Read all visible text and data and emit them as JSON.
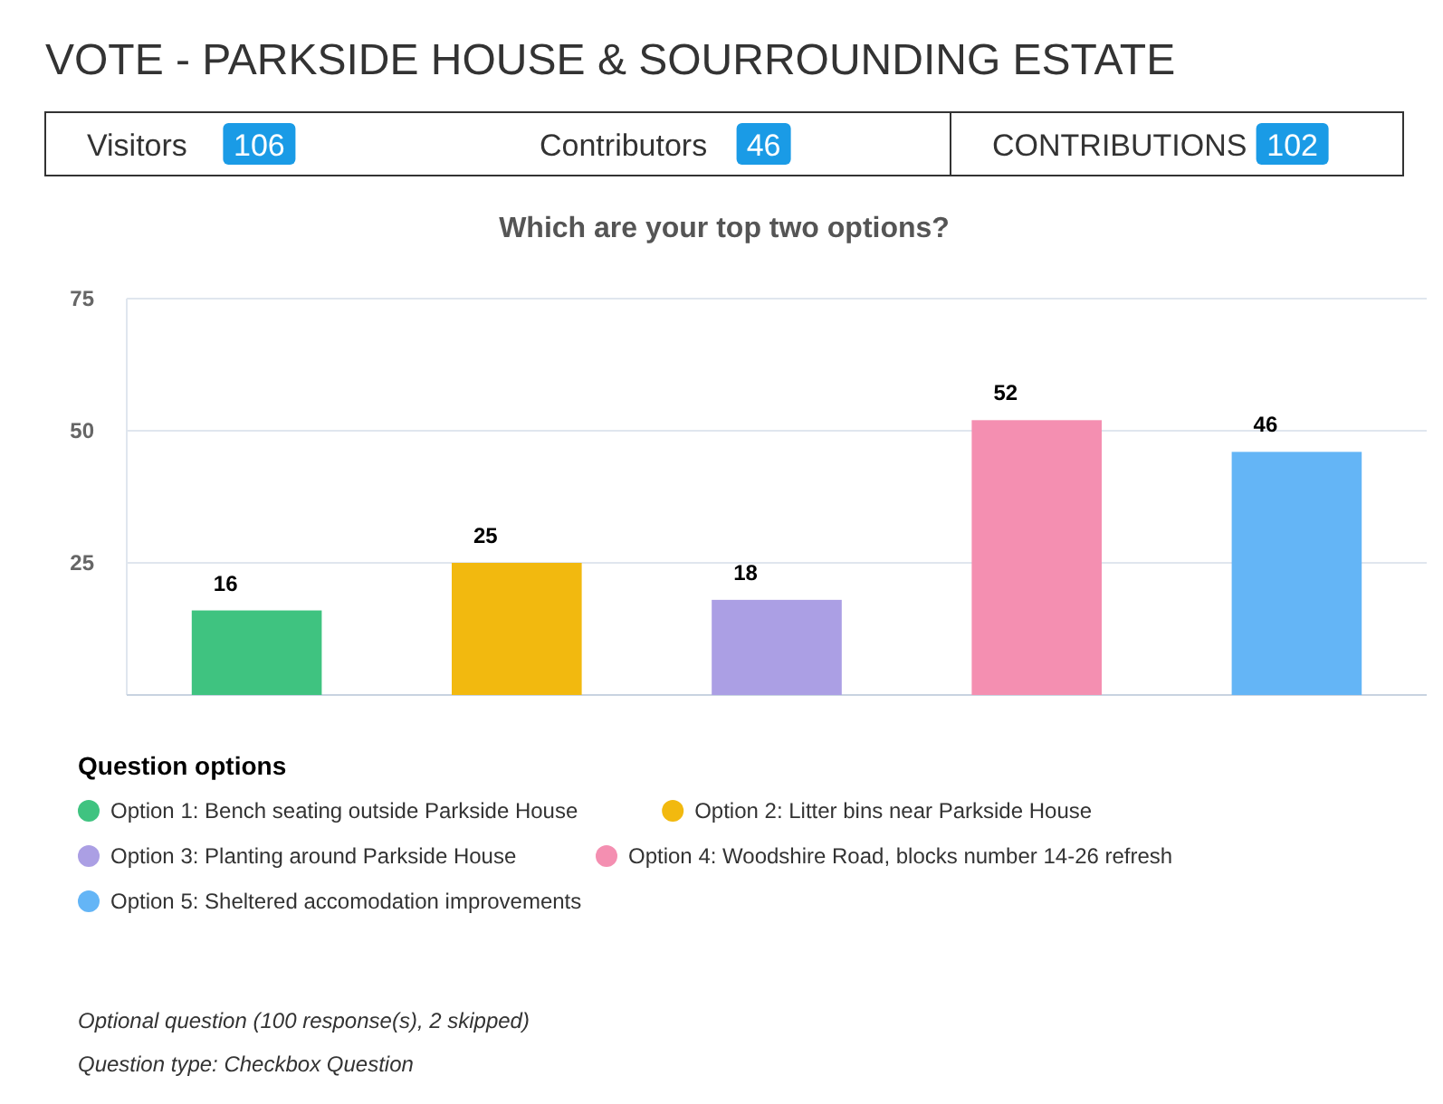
{
  "chart_data": {
    "type": "bar",
    "title": "VOTE - PARKSIDE HOUSE & SOURROUNDING ESTATE",
    "subtitle": "Which are your top two options?",
    "legend_title": "Question options",
    "categories": [
      null,
      null,
      null,
      null,
      null
    ],
    "series": [
      {
        "name": "Option 1: Bench seating outside Parkside House",
        "color": "#3fc380",
        "values": [
          16,
          null,
          null,
          null,
          null
        ]
      },
      {
        "name": "Option 2: Litter bins near Parkside House",
        "color": "#f2b90f",
        "values": [
          null,
          25,
          null,
          null,
          null
        ]
      },
      {
        "name": "Option 3: Planting around Parkside House",
        "color": "#ab9fe4",
        "values": [
          null,
          null,
          18,
          null,
          null
        ]
      },
      {
        "name": "Option 4: Woodshire Road, blocks number 14-26 refresh",
        "color": "#f48fb1",
        "values": [
          null,
          null,
          null,
          52,
          null
        ]
      },
      {
        "name": "Option 5: Sheltered accomodation improvements",
        "color": "#64b5f6",
        "values": [
          null,
          null,
          null,
          null,
          46
        ]
      }
    ],
    "ylim": [
      0,
      75
    ],
    "yticks": [
      25,
      50,
      75
    ],
    "grid": "y",
    "tick_labels": "y",
    "data_labels": true,
    "legend": "bottom",
    "annotations": [
      "Visitors",
      "106",
      "Contributors",
      "46",
      "CONTRIBUTIONS",
      "102",
      "Optional question (100 response(s), 2 skipped)",
      "Question type: Checkbox Question"
    ]
  }
}
